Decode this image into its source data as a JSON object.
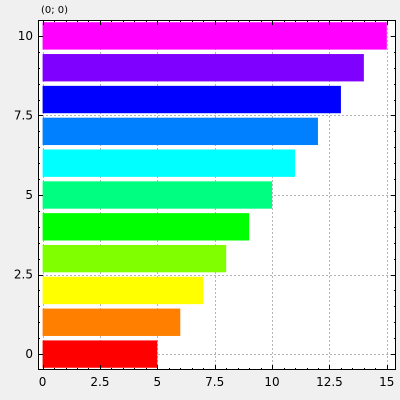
{
  "coord_readout": "(0; 0)",
  "chart_data": {
    "type": "bar",
    "orientation": "horizontal",
    "title": "",
    "xlabel": "",
    "ylabel": "",
    "categories": [
      0,
      1,
      2,
      3,
      4,
      5,
      6,
      7,
      8,
      9,
      10
    ],
    "values": [
      5,
      6,
      7,
      8,
      9,
      10,
      11,
      12,
      13,
      14,
      15
    ],
    "colors": [
      "#ff0000",
      "#ff8000",
      "#ffff00",
      "#80ff00",
      "#00ff00",
      "#00ff80",
      "#00ffff",
      "#0080ff",
      "#0000ff",
      "#8000ff",
      "#ff00ff"
    ],
    "xlim": [
      -0.2,
      15.4
    ],
    "ylim": [
      -0.5,
      10.5
    ],
    "x_ticks": [
      0,
      2.5,
      5,
      7.5,
      10,
      12.5,
      15
    ],
    "x_tick_labels": [
      "0",
      "2.5",
      "5",
      "7.5",
      "10",
      "12.5",
      "15"
    ],
    "y_ticks": [
      0,
      2.5,
      5,
      7.5,
      10
    ],
    "y_tick_labels": [
      "0",
      "2.5",
      "5",
      "7.5",
      "10"
    ],
    "grid": true,
    "legend": "none"
  }
}
